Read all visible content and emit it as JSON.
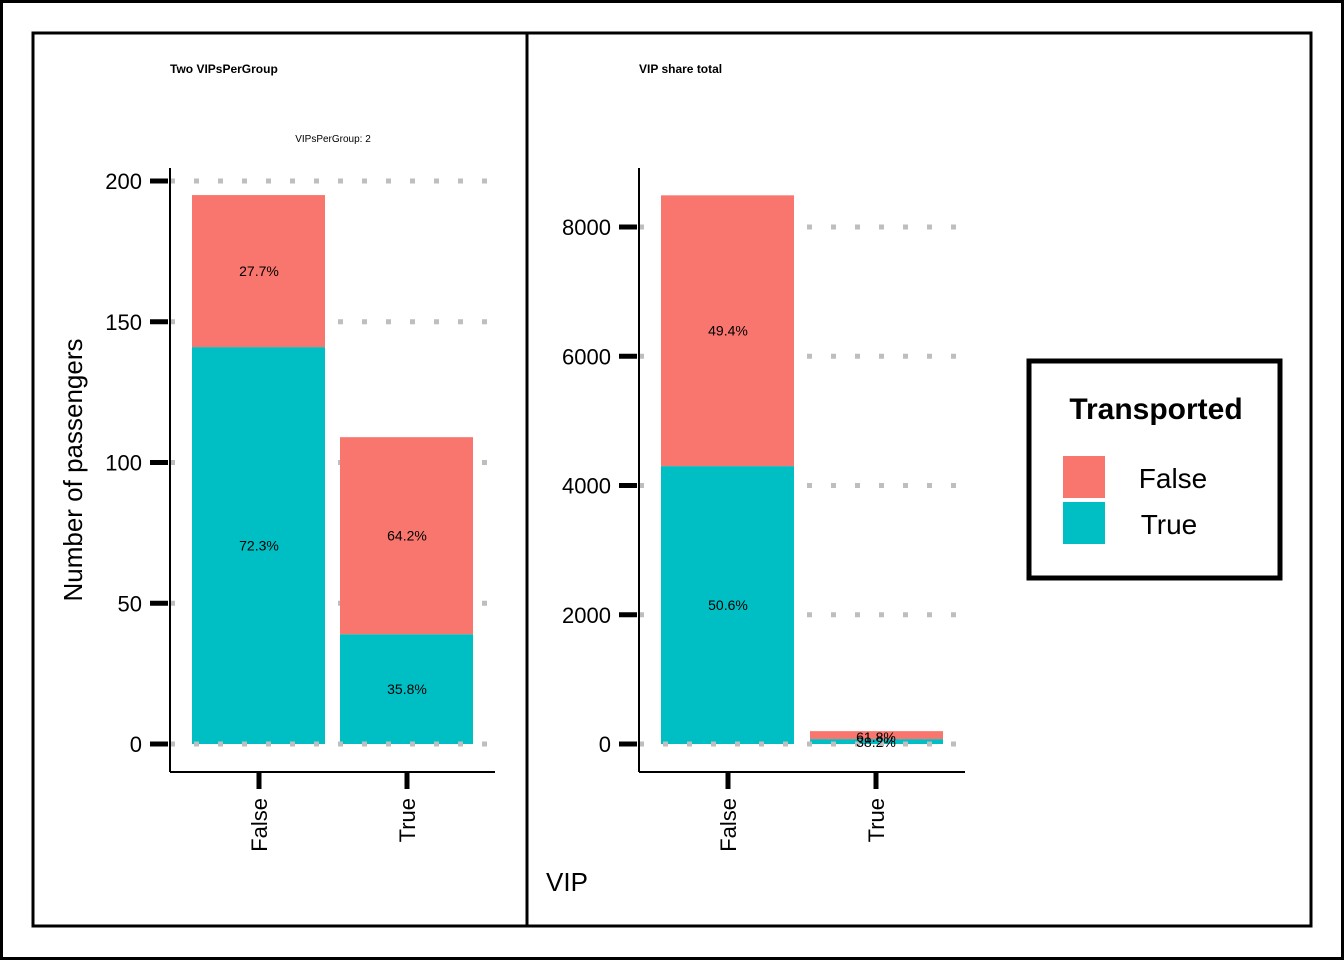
{
  "colors": {
    "false": "#F8766D",
    "true": "#00BFC4",
    "grid": "#BEBEBE"
  },
  "chart_data": [
    {
      "type": "bar",
      "stacked": true,
      "title": "Two VIPsPerGroup",
      "strip_label": "VIPsPerGroup: 2",
      "ylabel": "Number of passengers",
      "categories": [
        "False",
        "True"
      ],
      "ylim": [
        0,
        200
      ],
      "yticks": [
        0,
        50,
        100,
        150,
        200
      ],
      "ytick_labels": [
        "0",
        "50",
        "100",
        "150",
        "200"
      ],
      "series": [
        {
          "name": "True",
          "values": [
            141,
            39
          ],
          "labels": [
            "72.3%",
            "35.8%"
          ]
        },
        {
          "name": "False",
          "values": [
            54,
            70
          ],
          "labels": [
            "27.7%",
            "64.2%"
          ]
        }
      ]
    },
    {
      "type": "bar",
      "stacked": true,
      "title": "VIP share total",
      "xlabel": "VIP",
      "categories": [
        "False",
        "True"
      ],
      "ylim": [
        0,
        8000
      ],
      "yticks": [
        0,
        2000,
        4000,
        6000,
        8000
      ],
      "ytick_labels": [
        "0",
        "2000",
        "4000",
        "6000",
        "8000"
      ],
      "series": [
        {
          "name": "True",
          "values": [
            4300,
            76
          ],
          "labels": [
            "50.6%",
            "38.2%"
          ]
        },
        {
          "name": "False",
          "values": [
            4190,
            123
          ],
          "labels": [
            "49.4%",
            "61.8%"
          ]
        }
      ]
    }
  ],
  "legend": {
    "title": "Transported",
    "items": [
      {
        "label": "False",
        "color": "#F8766D"
      },
      {
        "label": "True",
        "color": "#00BFC4"
      }
    ]
  }
}
